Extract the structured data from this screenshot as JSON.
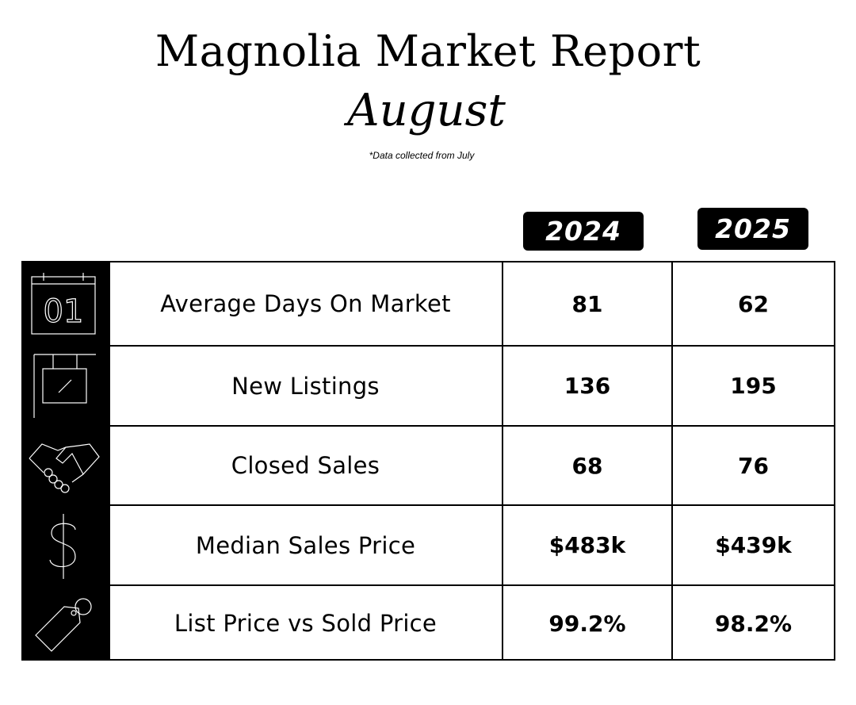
{
  "header": {
    "title": "Magnolia Market Report",
    "month": "August",
    "note": "*Data collected from July"
  },
  "years": [
    "2024",
    "2025"
  ],
  "rows": [
    {
      "icon": "calendar-icon",
      "label": "Average Days On Market",
      "v2024": "81",
      "v2025": "62"
    },
    {
      "icon": "hanging-sign-icon",
      "label": "New Listings",
      "v2024": "136",
      "v2025": "195"
    },
    {
      "icon": "handshake-icon",
      "label": "Closed Sales",
      "v2024": "68",
      "v2025": "76"
    },
    {
      "icon": "dollar-icon",
      "label": "Median Sales Price",
      "v2024": "$483k",
      "v2025": "$439k"
    },
    {
      "icon": "price-tag-icon",
      "label": "List Price vs Sold Price",
      "v2024": "99.2%",
      "v2025": "98.2%"
    }
  ],
  "calendar_icon_text": "01",
  "colors": {
    "background": "#ffffff",
    "ink": "#000000",
    "icon_line": "#ffffff"
  }
}
